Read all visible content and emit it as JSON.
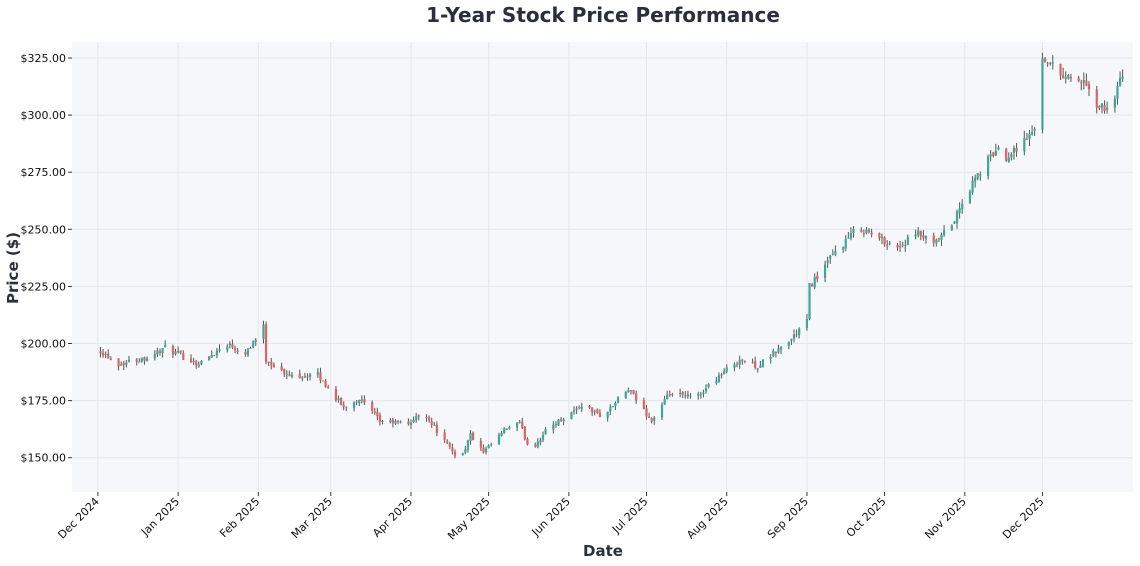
{
  "chart_data": {
    "type": "candlestick",
    "title": "1-Year Stock Price Performance",
    "xlabel": "Date",
    "ylabel": "Price ($)",
    "ylim": [
      135,
      332
    ],
    "xlim": [
      "2024-11-21",
      "2026-01-05"
    ],
    "grid": true,
    "colors": {
      "up": "#3aa79a",
      "down": "#e06262",
      "wick": "#555555",
      "plot_bg": "#f5f7fa",
      "grid": "#e3e6eb",
      "title": "#2b2f3d"
    },
    "y_ticks": [
      {
        "value": 150,
        "label": "$150.00"
      },
      {
        "value": 175,
        "label": "$175.00"
      },
      {
        "value": 200,
        "label": "$200.00"
      },
      {
        "value": 225,
        "label": "$225.00"
      },
      {
        "value": 250,
        "label": "$250.00"
      },
      {
        "value": 275,
        "label": "$275.00"
      },
      {
        "value": 300,
        "label": "$300.00"
      },
      {
        "value": 325,
        "label": "$325.00"
      }
    ],
    "x_ticks": [
      {
        "date": "2024-12-01",
        "label": "Dec 2024"
      },
      {
        "date": "2025-01-01",
        "label": "Jan 2025"
      },
      {
        "date": "2025-02-01",
        "label": "Feb 2025"
      },
      {
        "date": "2025-03-01",
        "label": "Mar 2025"
      },
      {
        "date": "2025-04-01",
        "label": "Apr 2025"
      },
      {
        "date": "2025-05-01",
        "label": "May 2025"
      },
      {
        "date": "2025-06-01",
        "label": "Jun 2025"
      },
      {
        "date": "2025-07-01",
        "label": "Jul 2025"
      },
      {
        "date": "2025-08-01",
        "label": "Aug 2025"
      },
      {
        "date": "2025-09-01",
        "label": "Sep 2025"
      },
      {
        "date": "2025-10-01",
        "label": "Oct 2025"
      },
      {
        "date": "2025-11-01",
        "label": "Nov 2025"
      },
      {
        "date": "2025-12-01",
        "label": "Dec 2025"
      }
    ],
    "path": [
      [
        "2024-12-02",
        197
      ],
      [
        "2024-12-09",
        191
      ],
      [
        "2024-12-20",
        194
      ],
      [
        "2024-12-27",
        198
      ],
      [
        "2025-01-09",
        191
      ],
      [
        "2025-01-20",
        200
      ],
      [
        "2025-01-27",
        196
      ],
      [
        "2025-02-03",
        207
      ],
      [
        "2025-02-04",
        193
      ],
      [
        "2025-02-12",
        186
      ],
      [
        "2025-02-24",
        186
      ],
      [
        "2025-03-06",
        172
      ],
      [
        "2025-03-12",
        176
      ],
      [
        "2025-03-20",
        166
      ],
      [
        "2025-03-31",
        165
      ],
      [
        "2025-04-06",
        170
      ],
      [
        "2025-04-14",
        157
      ],
      [
        "2025-04-20",
        149
      ],
      [
        "2025-04-24",
        160
      ],
      [
        "2025-04-29",
        152
      ],
      [
        "2025-05-08",
        163
      ],
      [
        "2025-05-13",
        165
      ],
      [
        "2025-05-17",
        153
      ],
      [
        "2025-05-24",
        163
      ],
      [
        "2025-06-06",
        173
      ],
      [
        "2025-06-14",
        168
      ],
      [
        "2025-06-24",
        180
      ],
      [
        "2025-07-03",
        166
      ],
      [
        "2025-07-10",
        178
      ],
      [
        "2025-07-20",
        176
      ],
      [
        "2025-07-27",
        184
      ],
      [
        "2025-08-06",
        193
      ],
      [
        "2025-08-13",
        190
      ],
      [
        "2025-08-26",
        202
      ],
      [
        "2025-09-01",
        210
      ],
      [
        "2025-09-02",
        225
      ],
      [
        "2025-09-12",
        240
      ],
      [
        "2025-09-21",
        251
      ],
      [
        "2025-09-29",
        246
      ],
      [
        "2025-10-06",
        242
      ],
      [
        "2025-10-14",
        248
      ],
      [
        "2025-10-20",
        243
      ],
      [
        "2025-10-27",
        252
      ],
      [
        "2025-11-05",
        272
      ],
      [
        "2025-11-13",
        285
      ],
      [
        "2025-11-17",
        282
      ],
      [
        "2025-11-25",
        290
      ],
      [
        "2025-11-30",
        296
      ],
      [
        "2025-12-01",
        326
      ],
      [
        "2025-12-08",
        318
      ],
      [
        "2025-12-16",
        315
      ],
      [
        "2025-12-23",
        303
      ],
      [
        "2025-12-27",
        303
      ],
      [
        "2026-01-01",
        317
      ]
    ]
  }
}
